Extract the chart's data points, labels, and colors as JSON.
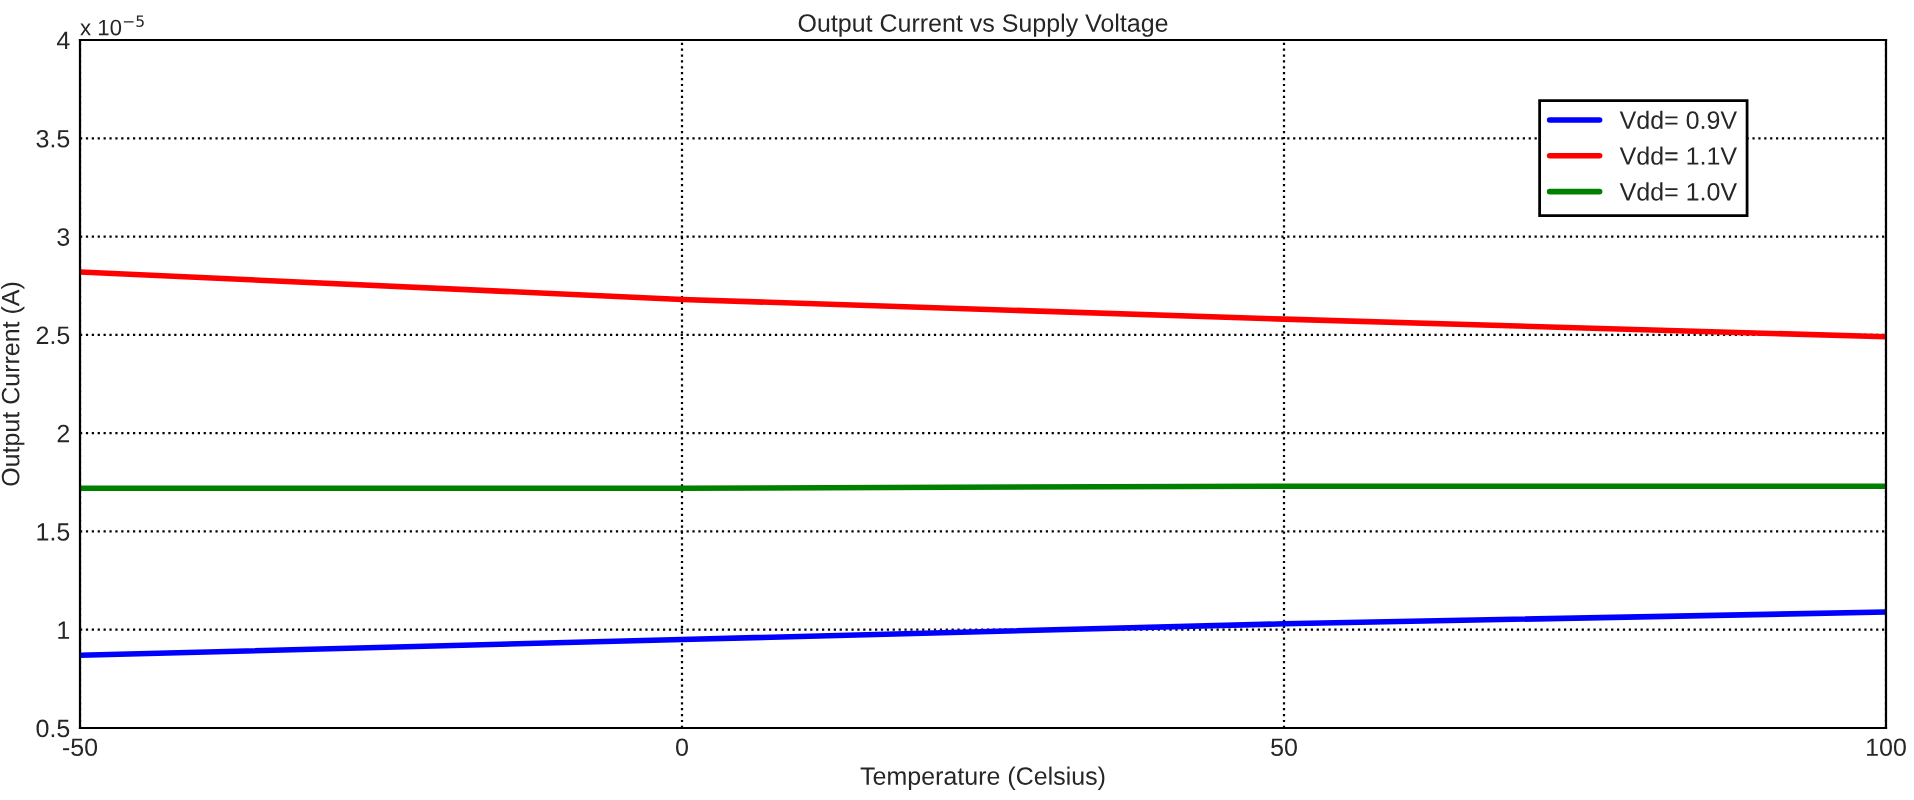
{
  "chart_data": {
    "type": "line",
    "title": "Output Current vs Supply Voltage",
    "xlabel": "Temperature (Celsius)",
    "ylabel": "Output Current (A)",
    "annotations": [
      "x 10$^{−5}$"
    ],
    "x": [
      -50,
      0,
      50,
      100
    ],
    "series": [
      {
        "name": "Vdd= 0.9V",
        "color": "#0000ff",
        "values": [
          0.87,
          0.95,
          1.03,
          1.09
        ]
      },
      {
        "name": "Vdd= 1.1V",
        "color": "#ff0000",
        "values": [
          2.82,
          2.68,
          2.58,
          2.49
        ]
      },
      {
        "name": "Vdd= 1.0V",
        "color": "#008000",
        "values": [
          1.72,
          1.72,
          1.73,
          1.73
        ]
      }
    ],
    "xlim": [
      -50,
      100
    ],
    "xticks": [
      -50,
      0,
      50,
      100
    ],
    "ylim": [
      0.5,
      4
    ],
    "yticks": [
      0.5,
      1,
      1.5,
      2,
      2.5,
      3,
      3.5,
      4
    ],
    "grid": true,
    "legend": "top right",
    "line_style": "solid",
    "marker": "none"
  }
}
